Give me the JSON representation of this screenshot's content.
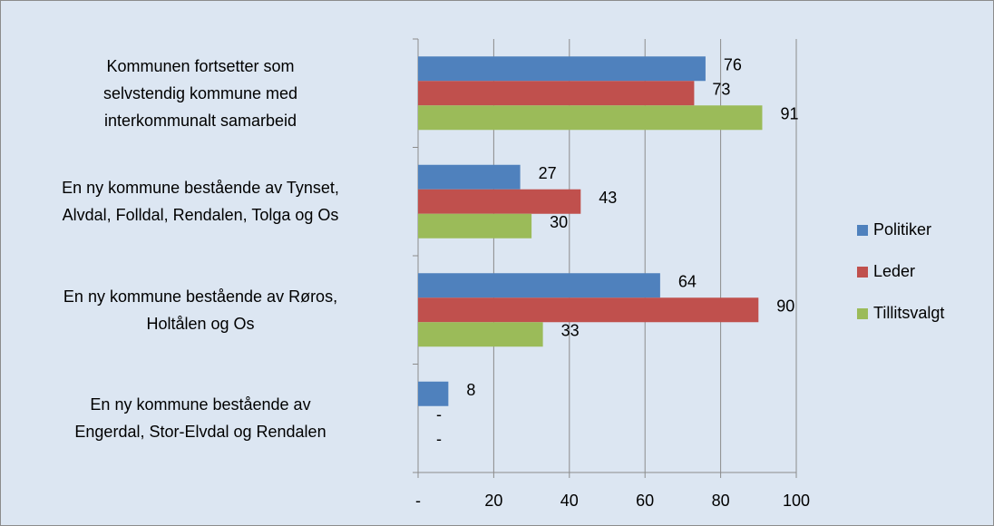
{
  "chart_data": {
    "type": "bar",
    "orientation": "horizontal",
    "categories": [
      "Kommunen fortsetter som\nselvstendig kommune med\ninterkommunalt samarbeid",
      "En ny kommune bestående av Tynset,\nAlvdal, Folldal, Rendalen, Tolga og Os",
      "En ny kommune bestående av Røros,\nHoltålen og Os",
      "En ny kommune bestående av\nEngerdal, Stor-Elvdal og Rendalen"
    ],
    "series": [
      {
        "name": "Politiker",
        "color": "#4f81bd",
        "values": [
          76,
          27,
          64,
          8
        ]
      },
      {
        "name": "Leder",
        "color": "#c0504d",
        "values": [
          73,
          43,
          90,
          0
        ],
        "value_labels": [
          "73",
          "43",
          "90",
          "-"
        ]
      },
      {
        "name": "Tillitsvalgt",
        "color": "#9bbb59",
        "values": [
          91,
          30,
          33,
          0
        ],
        "value_labels": [
          "91",
          "30",
          "33",
          "-"
        ]
      }
    ],
    "xlim": [
      0,
      100
    ],
    "xticks": [
      {
        "value": 0,
        "label": "-"
      },
      20,
      40,
      60,
      80,
      100
    ],
    "grid": true,
    "legend": "right"
  }
}
